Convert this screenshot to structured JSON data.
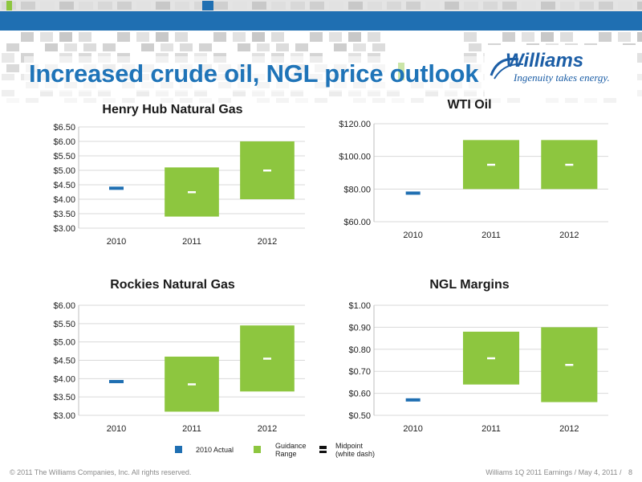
{
  "slide": {
    "title": "Increased crude oil, NGL price outlook",
    "logo_name": "Williams",
    "logo_tagline": "Ingenuity takes energy.",
    "footer_left": "© 2011 The Williams Companies, Inc. All rights reserved.",
    "footer_right": "Williams 1Q 2011 Earnings / May 4, 2011 /",
    "page_number": "8"
  },
  "colors": {
    "actual": "#1f6fb2",
    "guidance": "#8dc63f",
    "midpoint": "#ffffff",
    "title": "#1f74b8"
  },
  "legend": {
    "actual": "2010 Actual",
    "guidance_line1": "Guidance",
    "guidance_line2": "Range",
    "midpoint_line1": "Midpoint",
    "midpoint_line2": "(white dash)"
  },
  "chart_data": [
    {
      "id": "henry-hub",
      "type": "bar",
      "title": "Henry Hub Natural Gas",
      "categories": [
        "2010",
        "2011",
        "2012"
      ],
      "actual": {
        "category": "2010",
        "value": 4.38
      },
      "ranges": [
        {
          "category": "2011",
          "low": 3.4,
          "high": 5.1,
          "mid": 4.25
        },
        {
          "category": "2012",
          "low": 4.0,
          "high": 6.0,
          "mid": 5.0
        }
      ],
      "ylim": [
        3.0,
        6.5
      ],
      "yticks": [
        3.0,
        3.5,
        4.0,
        4.5,
        5.0,
        5.5,
        6.0,
        6.5
      ],
      "ytick_labels": [
        "$3.00",
        "$3.50",
        "$4.00",
        "$4.50",
        "$5.00",
        "$5.50",
        "$6.00",
        "$6.50"
      ],
      "grid": true
    },
    {
      "id": "wti-oil",
      "type": "bar",
      "title": "WTI Oil",
      "categories": [
        "2010",
        "2011",
        "2012"
      ],
      "actual": {
        "category": "2010",
        "value": 77.5
      },
      "ranges": [
        {
          "category": "2011",
          "low": 80,
          "high": 110,
          "mid": 95
        },
        {
          "category": "2012",
          "low": 80,
          "high": 110,
          "mid": 95
        }
      ],
      "ylim": [
        60,
        120
      ],
      "yticks": [
        60,
        80,
        100,
        120
      ],
      "ytick_labels": [
        "$60.00",
        "$80.00",
        "$100.00",
        "$120.00"
      ],
      "grid": true
    },
    {
      "id": "rockies-gas",
      "type": "bar",
      "title": "Rockies Natural Gas",
      "categories": [
        "2010",
        "2011",
        "2012"
      ],
      "actual": {
        "category": "2010",
        "value": 3.92
      },
      "ranges": [
        {
          "category": "2011",
          "low": 3.1,
          "high": 4.6,
          "mid": 3.85
        },
        {
          "category": "2012",
          "low": 3.65,
          "high": 5.45,
          "mid": 4.55
        }
      ],
      "ylim": [
        3.0,
        6.0
      ],
      "yticks": [
        3.0,
        3.5,
        4.0,
        4.5,
        5.0,
        5.5,
        6.0
      ],
      "ytick_labels": [
        "$3.00",
        "$3.50",
        "$4.00",
        "$4.50",
        "$5.00",
        "$5.50",
        "$6.00"
      ],
      "grid": true
    },
    {
      "id": "ngl-margins",
      "type": "bar",
      "title": "NGL Margins",
      "categories": [
        "2010",
        "2011",
        "2012"
      ],
      "actual": {
        "category": "2010",
        "value": 0.57
      },
      "ranges": [
        {
          "category": "2011",
          "low": 0.64,
          "high": 0.88,
          "mid": 0.76
        },
        {
          "category": "2012",
          "low": 0.56,
          "high": 0.9,
          "mid": 0.73
        }
      ],
      "ylim": [
        0.5,
        1.0
      ],
      "yticks": [
        0.5,
        0.6,
        0.7,
        0.8,
        0.9,
        1.0
      ],
      "ytick_labels": [
        "$0.50",
        "$0.60",
        "$0.70",
        "$0.80",
        "$0.90",
        "$1.00"
      ],
      "grid": true
    }
  ]
}
